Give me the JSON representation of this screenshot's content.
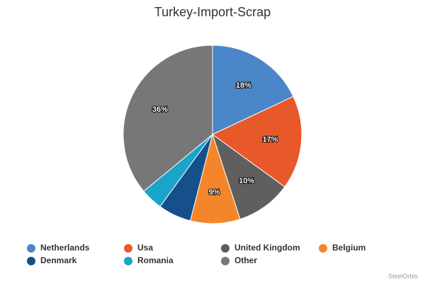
{
  "chart_data": {
    "type": "pie",
    "title": "Turkey-Import-Scrap",
    "categories": [
      "Netherlands",
      "Usa",
      "United Kingdom",
      "Belgium",
      "Denmark",
      "Romania",
      "Other"
    ],
    "values": [
      18,
      17,
      10,
      9,
      6,
      4,
      36
    ],
    "value_labels": [
      "18%",
      "17%",
      "10%",
      "9%",
      null,
      null,
      "36%"
    ],
    "colors": [
      "#4a86c8",
      "#e8592a",
      "#5f5f5f",
      "#f5852a",
      "#154f8c",
      "#1aa4c8",
      "#777777"
    ],
    "credit": "SteelOrbis"
  }
}
